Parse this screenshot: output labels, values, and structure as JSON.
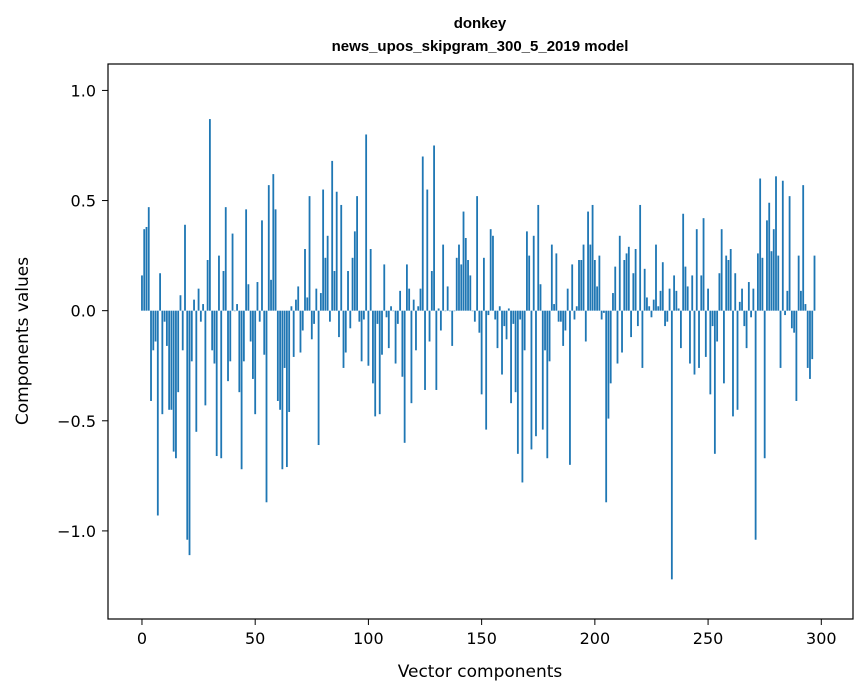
{
  "chart_data": {
    "type": "bar",
    "title": "donkey",
    "subtitle": "news_upos_skipgram_300_5_2019 model",
    "xlabel": "Vector components",
    "ylabel": "Components values",
    "xlim": [
      -15,
      314
    ],
    "ylim": [
      -1.4,
      1.12
    ],
    "xticks": [
      0,
      50,
      100,
      150,
      200,
      250,
      300
    ],
    "xtick_labels": [
      "0",
      "50",
      "100",
      "150",
      "200",
      "250",
      "300"
    ],
    "yticks": [
      -1.0,
      -0.5,
      0.0,
      0.5,
      1.0
    ],
    "ytick_labels": [
      "−1.0",
      "−0.5",
      "0.0",
      "0.5",
      "1.0"
    ],
    "bar_color": "#1f77b4",
    "grid": false,
    "values": [
      0.16,
      0.37,
      0.38,
      0.47,
      -0.41,
      -0.18,
      -0.14,
      -0.93,
      0.17,
      -0.47,
      -0.05,
      -0.16,
      -0.45,
      -0.45,
      -0.64,
      -0.67,
      -0.37,
      0.07,
      -0.18,
      0.39,
      -1.04,
      -1.11,
      -0.23,
      0.05,
      -0.55,
      0.1,
      -0.05,
      0.03,
      -0.43,
      0.23,
      0.87,
      -0.18,
      -0.24,
      -0.66,
      0.25,
      -0.67,
      0.18,
      0.47,
      -0.32,
      -0.23,
      0.35,
      0.0,
      0.03,
      -0.37,
      -0.72,
      -0.23,
      0.46,
      0.12,
      -0.14,
      -0.31,
      -0.47,
      0.13,
      -0.05,
      0.41,
      -0.2,
      -0.87,
      0.57,
      0.14,
      0.62,
      0.46,
      -0.41,
      -0.45,
      -0.72,
      -0.26,
      -0.71,
      -0.46,
      0.02,
      -0.21,
      0.05,
      0.11,
      -0.19,
      -0.09,
      0.28,
      0.06,
      0.52,
      -0.13,
      -0.06,
      0.1,
      -0.61,
      0.08,
      0.55,
      0.24,
      0.34,
      -0.05,
      0.68,
      0.18,
      0.54,
      -0.12,
      0.48,
      -0.26,
      -0.19,
      0.18,
      -0.08,
      0.24,
      0.36,
      0.52,
      -0.05,
      -0.23,
      -0.04,
      0.8,
      -0.25,
      0.28,
      -0.33,
      -0.48,
      -0.06,
      -0.47,
      -0.2,
      0.21,
      -0.03,
      -0.17,
      0.02,
      0.0,
      -0.24,
      -0.06,
      0.09,
      -0.3,
      -0.6,
      0.21,
      0.1,
      -0.42,
      0.05,
      -0.18,
      0.02,
      0.1,
      0.7,
      -0.36,
      0.55,
      -0.14,
      0.18,
      0.75,
      -0.36,
      0.01,
      -0.09,
      0.3,
      0.0,
      0.11,
      0.0,
      -0.16,
      0.0,
      0.24,
      0.3,
      0.21,
      0.45,
      0.33,
      0.23,
      0.16,
      0.0,
      -0.05,
      0.52,
      -0.1,
      -0.38,
      0.24,
      -0.54,
      -0.02,
      0.37,
      0.34,
      -0.04,
      -0.17,
      0.02,
      -0.29,
      -0.07,
      -0.13,
      0.01,
      -0.42,
      -0.06,
      -0.37,
      -0.65,
      -0.04,
      -0.78,
      -0.18,
      0.36,
      0.25,
      -0.63,
      0.34,
      -0.57,
      0.48,
      0.12,
      -0.54,
      -0.18,
      -0.67,
      -0.23,
      0.3,
      0.03,
      0.26,
      -0.05,
      -0.05,
      -0.16,
      -0.09,
      0.1,
      -0.7,
      0.21,
      -0.04,
      0.02,
      0.23,
      0.23,
      0.3,
      -0.14,
      0.45,
      0.3,
      0.48,
      0.23,
      0.11,
      0.25,
      -0.04,
      -0.01,
      -0.87,
      -0.49,
      -0.33,
      0.08,
      0.2,
      -0.24,
      0.34,
      -0.19,
      0.23,
      0.26,
      0.29,
      -0.12,
      0.17,
      0.28,
      -0.07,
      0.48,
      -0.26,
      0.19,
      0.06,
      0.02,
      -0.03,
      0.05,
      0.3,
      0.02,
      0.09,
      0.22,
      -0.07,
      -0.05,
      0.1,
      -1.22,
      0.16,
      0.09,
      0.01,
      -0.17,
      0.44,
      0.2,
      0.11,
      -0.24,
      0.16,
      -0.29,
      0.37,
      -0.26,
      0.16,
      0.42,
      -0.21,
      0.1,
      -0.38,
      -0.07,
      -0.65,
      -0.14,
      0.17,
      0.37,
      -0.33,
      0.25,
      0.23,
      0.28,
      -0.48,
      0.17,
      -0.45,
      0.04,
      0.1,
      -0.07,
      -0.17,
      0.13,
      -0.03,
      0.1,
      -1.04,
      0.26,
      0.6,
      0.24,
      -0.67,
      0.41,
      0.49,
      0.27,
      0.37,
      0.61,
      0.25,
      -0.26,
      0.59,
      -0.02,
      0.09,
      0.52,
      -0.08,
      -0.1,
      -0.41,
      0.25,
      0.09,
      0.57,
      0.03,
      -0.26,
      -0.31,
      -0.22,
      0.25
    ]
  }
}
